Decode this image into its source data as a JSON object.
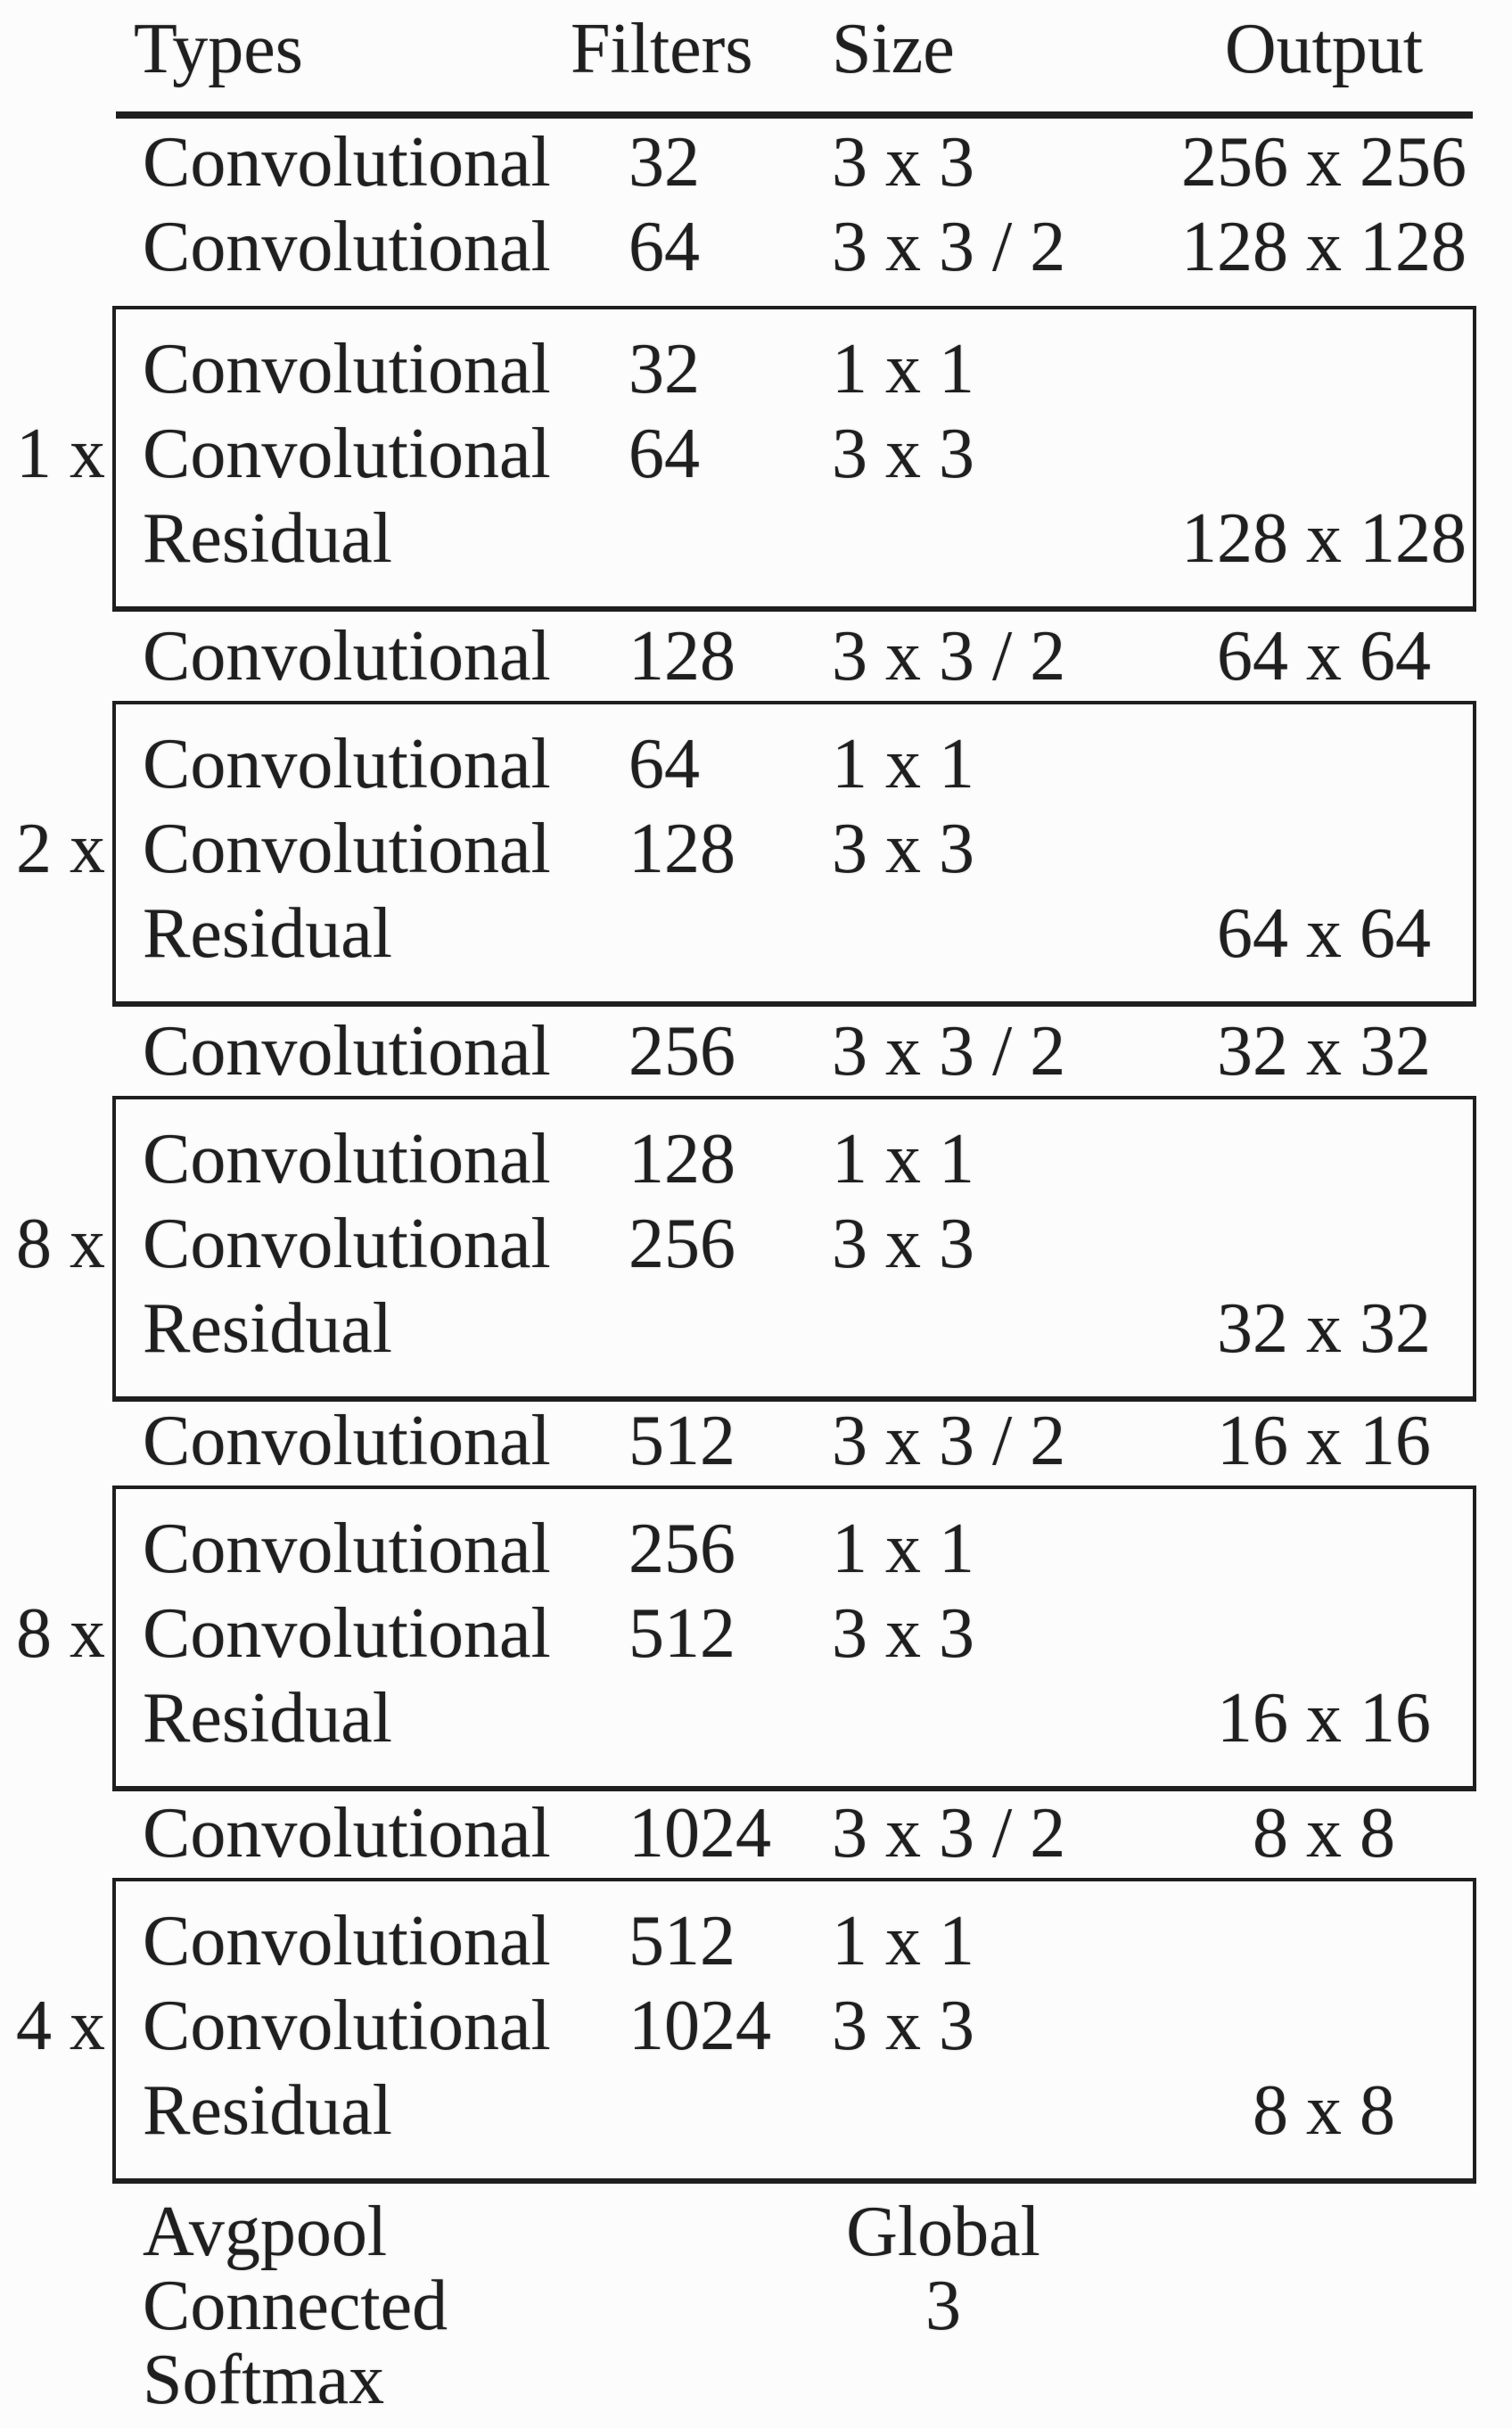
{
  "page": {
    "background": "#fcfcfc",
    "ink": "#1f1f1f",
    "description_title": "Network architecture table"
  },
  "header": {
    "types": "Types",
    "filters": "Filters",
    "size": "Size",
    "output": "Output"
  },
  "sections": [
    {
      "lead_rows": [
        {
          "type": "Convolutional",
          "filters": "32",
          "size": "3 x 3",
          "output": "256 x 256"
        },
        {
          "type": "Convolutional",
          "filters": "64",
          "size": "3 x 3 / 2",
          "output": "128 x 128"
        }
      ],
      "block": {
        "repeat": "1 x",
        "rows": [
          {
            "type": "Convolutional",
            "filters": "32",
            "size": "1 x 1",
            "output": ""
          },
          {
            "type": "Convolutional",
            "filters": "64",
            "size": "3 x 3",
            "output": ""
          },
          {
            "type": "Residual",
            "filters": "",
            "size": "",
            "output": "128 x 128"
          }
        ]
      }
    },
    {
      "lead_rows": [
        {
          "type": "Convolutional",
          "filters": "128",
          "size": "3 x 3 / 2",
          "output": "64 x 64"
        }
      ],
      "block": {
        "repeat": "2 x",
        "rows": [
          {
            "type": "Convolutional",
            "filters": "64",
            "size": "1 x 1",
            "output": ""
          },
          {
            "type": "Convolutional",
            "filters": "128",
            "size": "3 x 3",
            "output": ""
          },
          {
            "type": "Residual",
            "filters": "",
            "size": "",
            "output": "64 x 64"
          }
        ]
      }
    },
    {
      "lead_rows": [
        {
          "type": "Convolutional",
          "filters": "256",
          "size": "3 x 3 / 2",
          "output": "32 x 32"
        }
      ],
      "block": {
        "repeat": "8 x",
        "rows": [
          {
            "type": "Convolutional",
            "filters": "128",
            "size": "1 x 1",
            "output": ""
          },
          {
            "type": "Convolutional",
            "filters": "256",
            "size": "3 x 3",
            "output": ""
          },
          {
            "type": "Residual",
            "filters": "",
            "size": "",
            "output": "32 x 32"
          }
        ]
      }
    },
    {
      "lead_rows": [
        {
          "type": "Convolutional",
          "filters": "512",
          "size": "3 x 3 / 2",
          "output": "16 x 16"
        }
      ],
      "block": {
        "repeat": "8 x",
        "rows": [
          {
            "type": "Convolutional",
            "filters": "256",
            "size": "1 x 1",
            "output": ""
          },
          {
            "type": "Convolutional",
            "filters": "512",
            "size": "3 x 3",
            "output": ""
          },
          {
            "type": "Residual",
            "filters": "",
            "size": "",
            "output": "16 x 16"
          }
        ]
      }
    },
    {
      "lead_rows": [
        {
          "type": "Convolutional",
          "filters": "1024",
          "size": "3 x 3 / 2",
          "output": "8 x 8"
        }
      ],
      "block": {
        "repeat": "4 x",
        "rows": [
          {
            "type": "Convolutional",
            "filters": "512",
            "size": "1 x 1",
            "output": ""
          },
          {
            "type": "Convolutional",
            "filters": "1024",
            "size": "3 x 3",
            "output": ""
          },
          {
            "type": "Residual",
            "filters": "",
            "size": "",
            "output": "8 x 8"
          }
        ]
      }
    }
  ],
  "footer_rows": [
    {
      "type": "Avgpool",
      "filters": "",
      "size": "Global",
      "output": ""
    },
    {
      "type": "Connected",
      "filters": "",
      "size": "3",
      "output": ""
    },
    {
      "type": "Softmax",
      "filters": "",
      "size": "",
      "output": ""
    }
  ]
}
